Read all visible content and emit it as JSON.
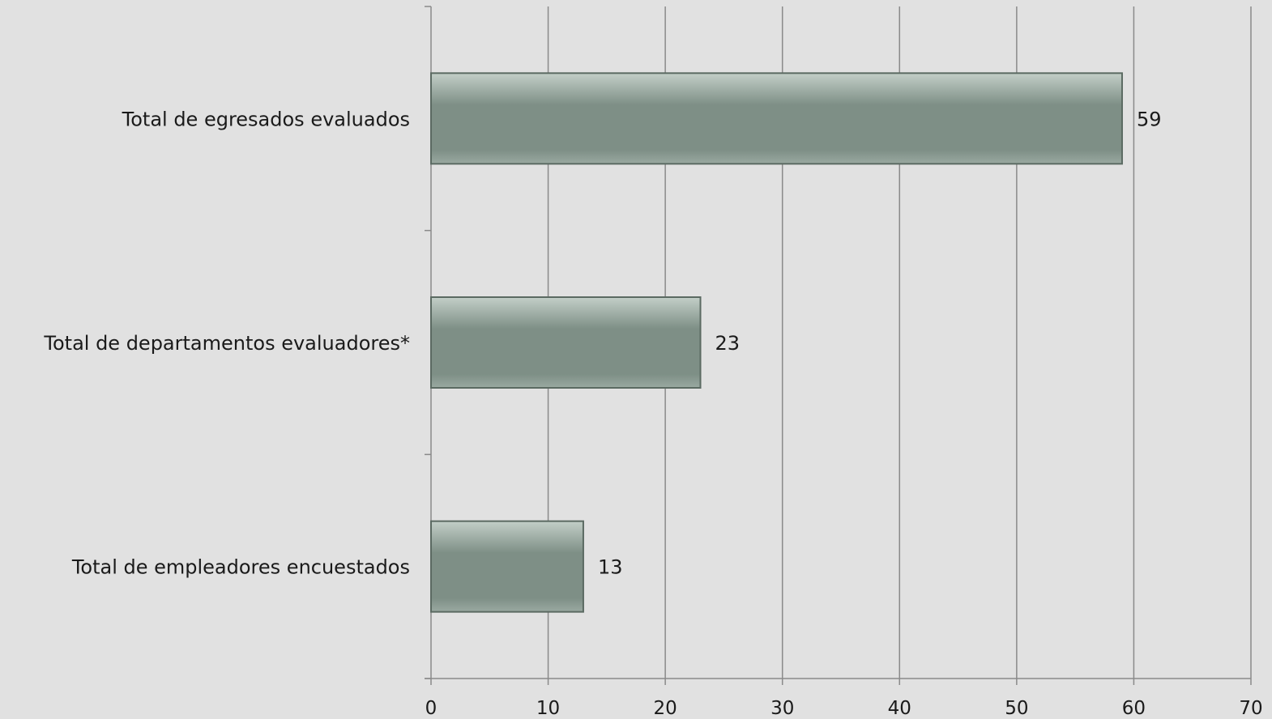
{
  "chart_data": {
    "type": "bar",
    "orientation": "horizontal",
    "categories": [
      "Total de egresados evaluados",
      "Total de departamentos evaluadores*",
      "Total de empleadores encuestados"
    ],
    "values": [
      59,
      23,
      13
    ],
    "xlim": [
      0,
      70
    ],
    "xticks": [
      "0",
      "10",
      "20",
      "30",
      "40",
      "50",
      "60",
      "70"
    ],
    "grid": true,
    "legend": "none",
    "data_labels": true
  },
  "colors": {
    "background": "#e1e1e1",
    "bar_fill": "#7e8f86",
    "bar_highlight": "#b8c6be",
    "bar_border": "#5b6a62",
    "gridline": "#8a8a8a"
  }
}
